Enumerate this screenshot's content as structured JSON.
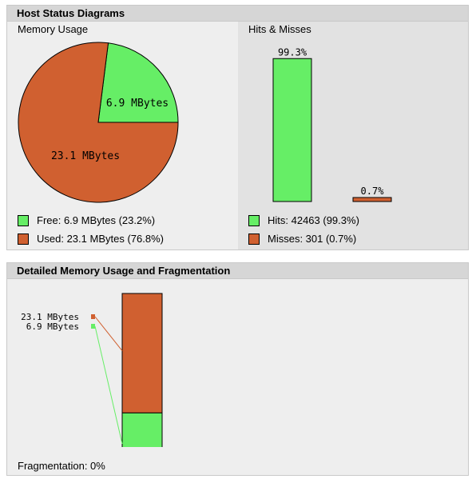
{
  "colors": {
    "free": "#66ee66",
    "used": "#d06030",
    "hits": "#66ee66",
    "misses": "#d06030"
  },
  "host_status": {
    "title": "Host Status Diagrams",
    "memory": {
      "heading": "Memory Usage",
      "free_label": "6.9 MBytes",
      "used_label": "23.1 MBytes",
      "legend_free": "Free: 6.9 MBytes (23.2%)",
      "legend_used": "Used: 23.1 MBytes (76.8%)"
    },
    "hits": {
      "heading": "Hits & Misses",
      "hits_pct_label": "99.3%",
      "misses_pct_label": "0.7%",
      "legend_hits": "Hits: 42463 (99.3%)",
      "legend_misses": "Misses: 301 (0.7%)"
    }
  },
  "detailed": {
    "title": "Detailed Memory Usage and Fragmentation",
    "label_used": "23.1 MBytes",
    "label_free": "6.9 MBytes",
    "fragmentation": "Fragmentation: 0%"
  },
  "chart_data": [
    {
      "type": "pie",
      "title": "Memory Usage",
      "categories": [
        "Free",
        "Used"
      ],
      "values": [
        6.9,
        23.1
      ],
      "percent": [
        23.2,
        76.8
      ]
    },
    {
      "type": "bar",
      "title": "Hits & Misses",
      "categories": [
        "Hits",
        "Misses"
      ],
      "values": [
        42463,
        301
      ],
      "percent": [
        99.3,
        0.7
      ]
    },
    {
      "type": "bar",
      "title": "Detailed Memory Usage and Fragmentation",
      "categories": [
        "Used",
        "Free"
      ],
      "values": [
        23.1,
        6.9
      ]
    }
  ]
}
